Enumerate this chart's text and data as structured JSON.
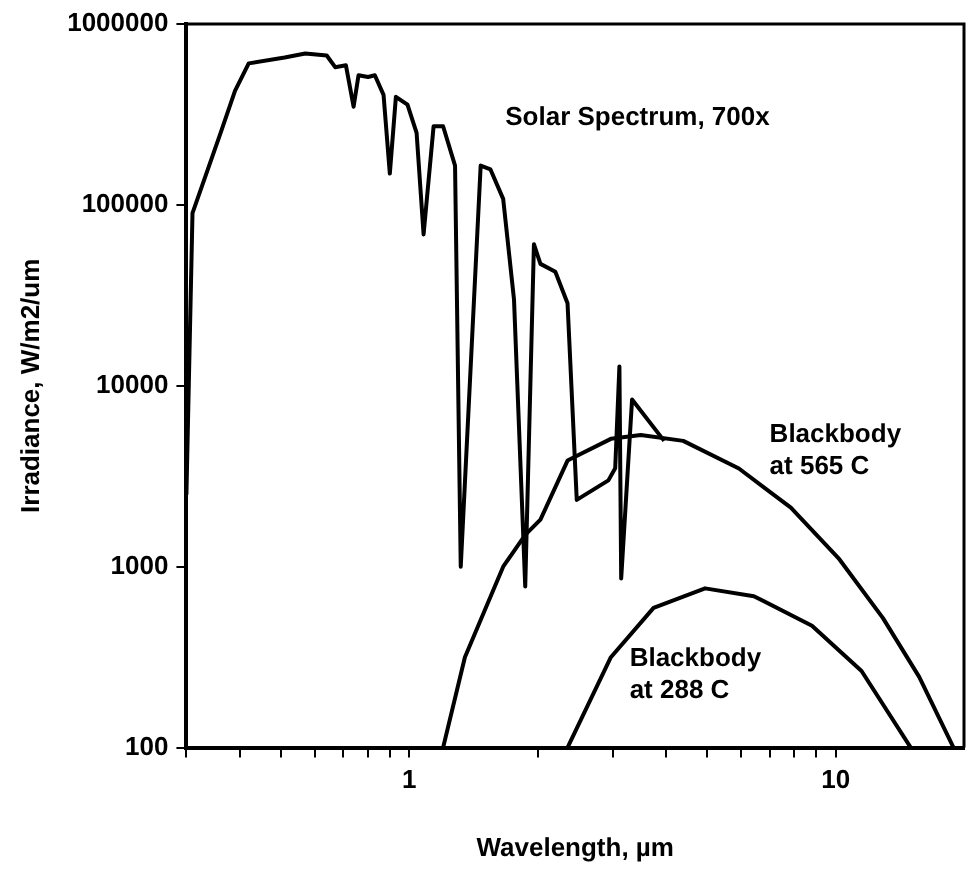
{
  "chart_data": {
    "type": "line",
    "xlabel": "Wavelength, µm",
    "ylabel": "Irradiance, W/m2/um",
    "log": "xy",
    "grid": false,
    "legend": false,
    "marker": "none",
    "line_style": "solid",
    "xlim": [
      0.3,
      20
    ],
    "ylim": [
      100,
      1000000
    ],
    "xticks": [
      {
        "value": 0.3,
        "label": null
      },
      {
        "value": 0.4,
        "label": null
      },
      {
        "value": 0.5,
        "label": null
      },
      {
        "value": 0.6,
        "label": null
      },
      {
        "value": 0.7,
        "label": null
      },
      {
        "value": 0.8,
        "label": null
      },
      {
        "value": 0.9,
        "label": null
      },
      1,
      {
        "value": 2,
        "label": null
      },
      {
        "value": 3,
        "label": null
      },
      {
        "value": 4,
        "label": null
      },
      {
        "value": 5,
        "label": null
      },
      {
        "value": 6,
        "label": null
      },
      {
        "value": 7,
        "label": null
      },
      {
        "value": 8,
        "label": null
      },
      {
        "value": 9,
        "label": null
      },
      10
    ],
    "yticks": [
      100,
      1000,
      10000,
      100000,
      1000000
    ],
    "series": [
      {
        "name": "Solar Spectrum, 700x",
        "color": "#000000",
        "x": [
          0.3,
          0.31,
          0.36,
          0.39,
          0.42,
          0.51,
          0.57,
          0.64,
          0.67,
          0.71,
          0.74,
          0.76,
          0.8,
          0.83,
          0.87,
          0.9,
          0.93,
          0.99,
          1.04,
          1.08,
          1.14,
          1.2,
          1.28,
          1.32,
          1.47,
          1.55,
          1.66,
          1.76,
          1.87,
          1.96,
          2.03,
          2.2,
          2.35,
          2.47,
          2.93,
          3.04,
          3.11,
          3.14,
          3.33,
          3.96
        ],
        "values": [
          2500,
          90000,
          246000,
          427000,
          606000,
          653000,
          687000,
          670000,
          577000,
          591000,
          349000,
          521000,
          509000,
          521000,
          406000,
          149000,
          396000,
          358000,
          250000,
          68700,
          272000,
          272000,
          165000,
          1000,
          165000,
          157000,
          108000,
          30000,
          778,
          60600,
          47200,
          42700,
          28600,
          2340,
          3000,
          3500,
          12800,
          861,
          8400,
          4960
        ]
      },
      {
        "name": "Blackbody\nat 565 C",
        "color": "#000000",
        "x": [
          1.2,
          1.35,
          1.66,
          1.87,
          2.03,
          2.35,
          2.97,
          3.49,
          4.39,
          5.93,
          7.85,
          10.2,
          12.9,
          15.7,
          18.9
        ],
        "values": [
          100,
          316,
          1000,
          1500,
          1820,
          3860,
          5090,
          5340,
          4960,
          3490,
          2120,
          1100,
          521,
          246,
          100
        ]
      },
      {
        "name": "Blackbody\nat 288 C",
        "color": "#000000",
        "x": [
          2.35,
          2.97,
          3.74,
          4.94,
          6.43,
          8.8,
          11.5,
          15
        ],
        "values": [
          100,
          316,
          592,
          759,
          687,
          472,
          265,
          100
        ]
      }
    ]
  }
}
